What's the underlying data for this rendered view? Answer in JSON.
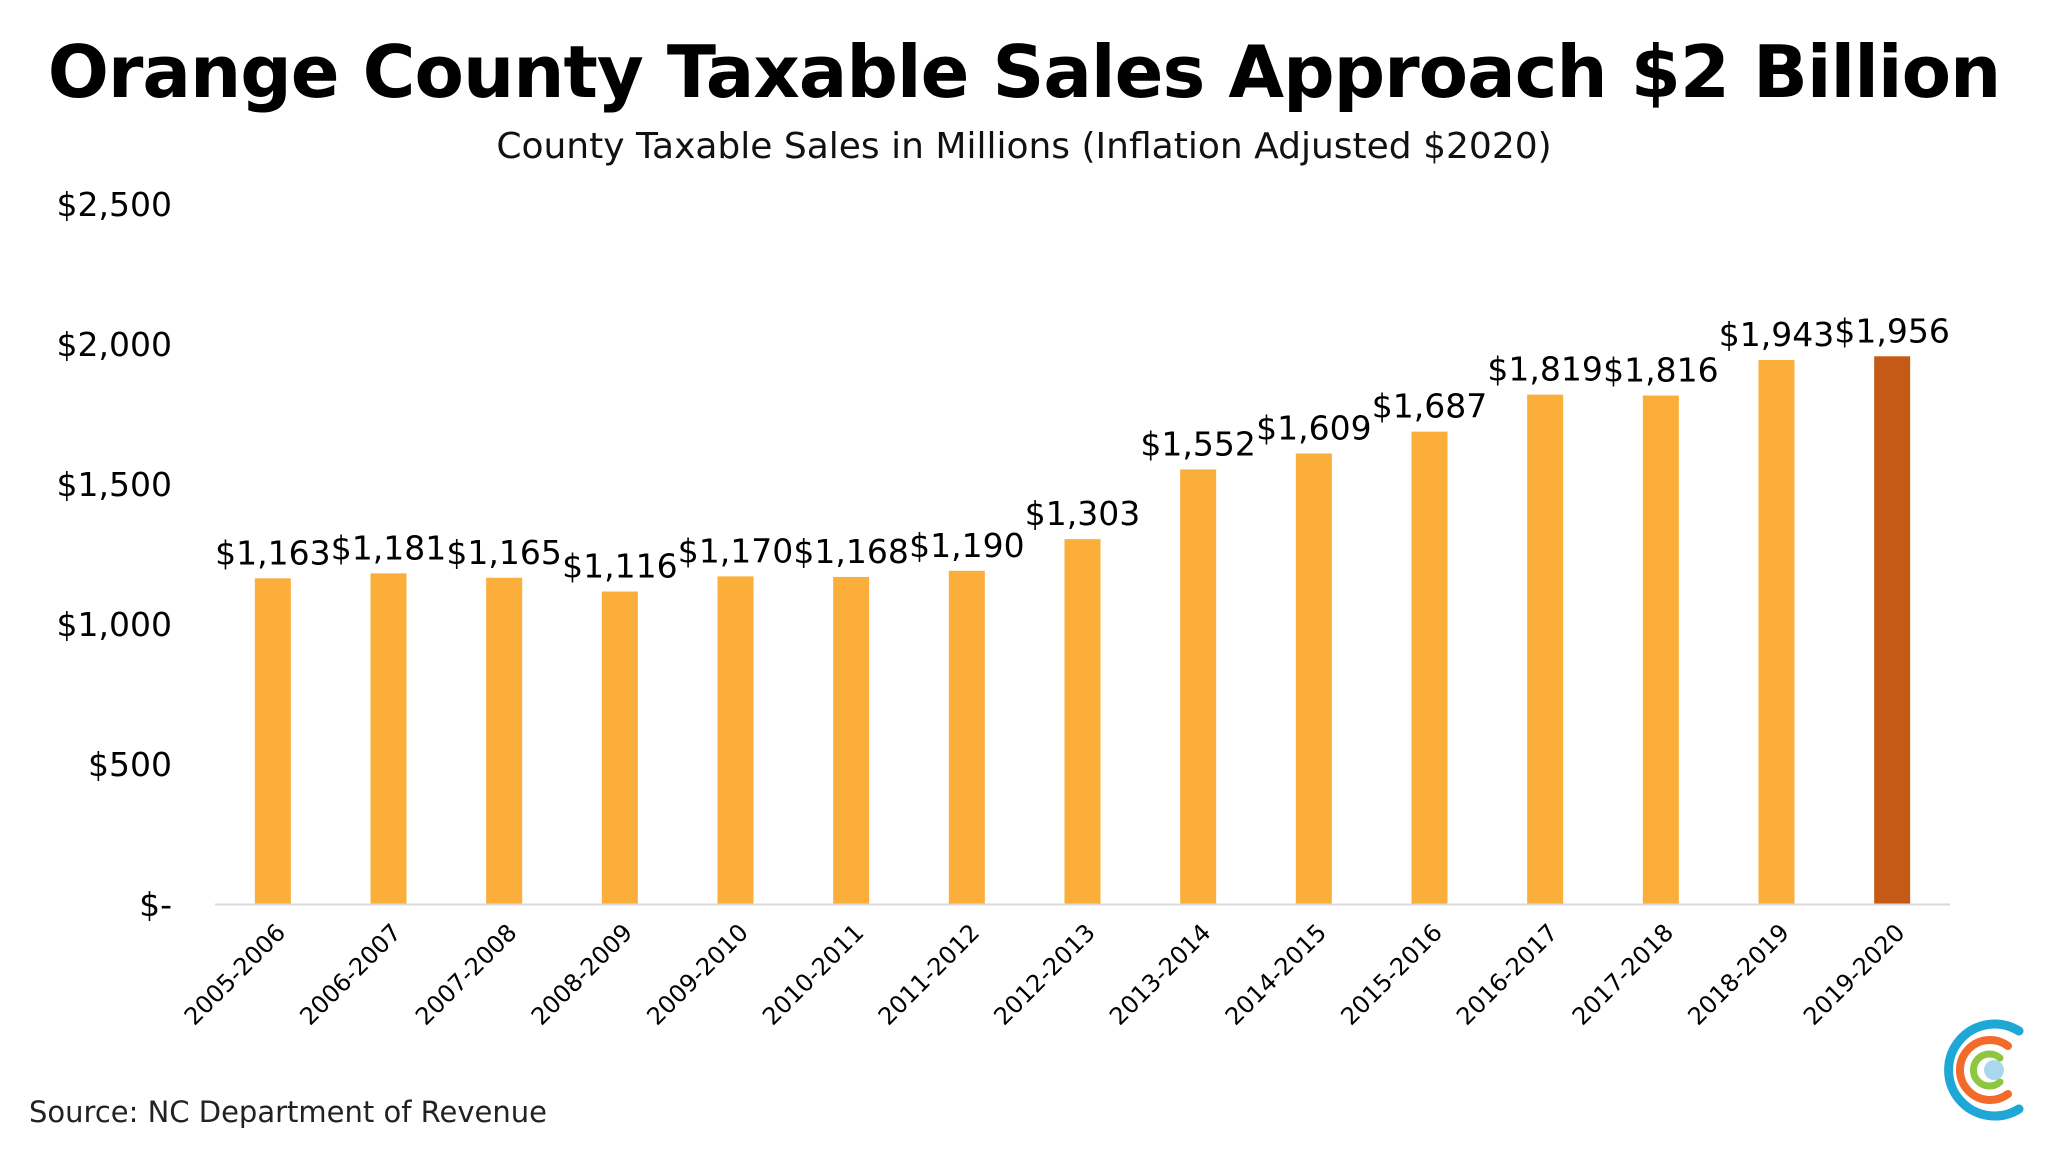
{
  "title": "Orange County Taxable Sales Approach $2 Billion",
  "subtitle": "County Taxable Sales in Millions (Inflation Adjusted $2020)",
  "source": "Source: NC Department of Revenue",
  "logo_icon": "concentric-c-logo-icon",
  "colors": {
    "bar": "#FBAE3A",
    "highlight_bar": "#C55A17",
    "axis": "#D9D9D9",
    "logo_outer": "#1FA7D6",
    "logo_middle": "#F26B2A",
    "logo_inner": "#8DC63F",
    "logo_dot": "#A9D8EE"
  },
  "chart_data": {
    "type": "bar",
    "title": "Orange County Taxable Sales Approach $2 Billion",
    "subtitle": "County Taxable Sales in Millions (Inflation Adjusted $2020)",
    "xlabel": "",
    "ylabel": "",
    "ylim": [
      0,
      2500
    ],
    "yticks": [
      0,
      500,
      1000,
      1500,
      2000,
      2500
    ],
    "ytick_labels": [
      "$-",
      "$500",
      "$1,000",
      "$1,500",
      "$2,000",
      "$2,500"
    ],
    "grid": false,
    "legend": "none",
    "categories": [
      "2005-2006",
      "2006-2007",
      "2007-2008",
      "2008-2009",
      "2009-2010",
      "2010-2011",
      "2011-2012",
      "2012-2013",
      "2013-2014",
      "2014-2015",
      "2015-2016",
      "2016-2017",
      "2017-2018",
      "2018-2019",
      "2019-2020"
    ],
    "values": [
      1163,
      1181,
      1165,
      1116,
      1170,
      1168,
      1190,
      1303,
      1552,
      1609,
      1687,
      1819,
      1816,
      1943,
      1956
    ],
    "data_labels": [
      "$1,163",
      "$1,181",
      "$1,165",
      "$1,116",
      "$1,170",
      "$1,168",
      "$1,190",
      "$1,303",
      "$1,552",
      "$1,609",
      "$1,687",
      "$1,819",
      "$1,816",
      "$1,943",
      "$1,956"
    ],
    "highlight_index": 14
  }
}
